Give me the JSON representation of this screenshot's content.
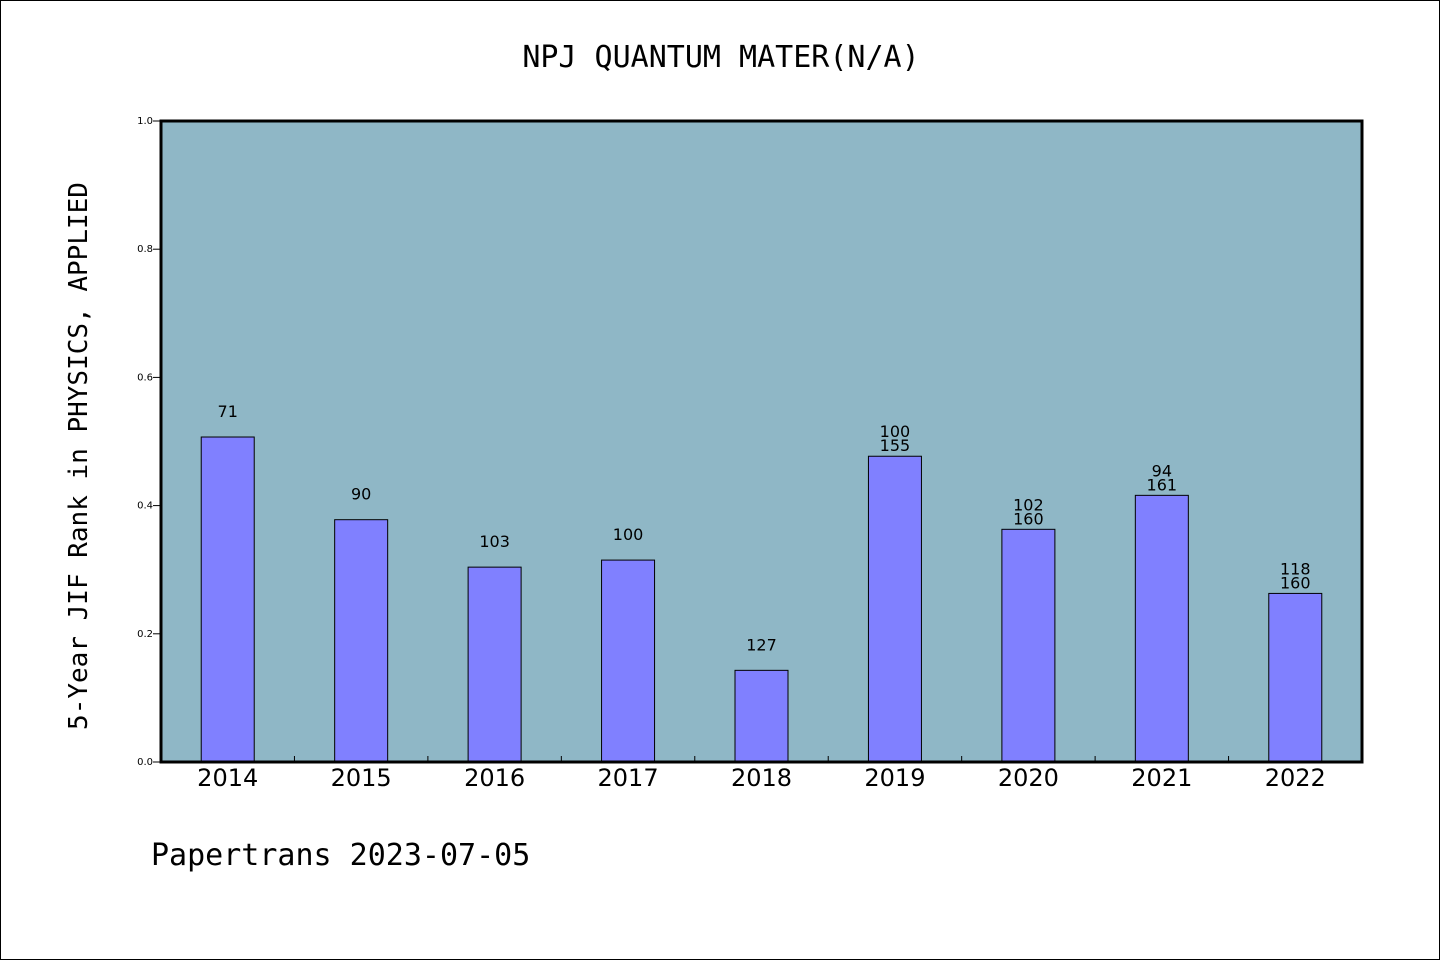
{
  "chart_data": {
    "type": "bar",
    "title": "NPJ QUANTUM MATER(N/A)",
    "xlabel": "",
    "ylabel": "5-Year JIF Rank in PHYSICS, APPLIED",
    "categories": [
      "2014",
      "2015",
      "2016",
      "2017",
      "2018",
      "2019",
      "2020",
      "2021",
      "2022"
    ],
    "values": [
      0.507,
      0.378,
      0.304,
      0.315,
      0.143,
      0.477,
      0.363,
      0.416,
      0.263
    ],
    "bar_labels": [
      [
        "71"
      ],
      [
        "90"
      ],
      [
        "103"
      ],
      [
        "100"
      ],
      [
        "127"
      ],
      [
        "100",
        "155"
      ],
      [
        "102",
        "160"
      ],
      [
        "94",
        "161"
      ],
      [
        "118",
        "160"
      ]
    ],
    "ylim": [
      0,
      1.0
    ],
    "yticks": [
      "0.0",
      "0.2",
      "0.4",
      "0.6",
      "0.8",
      "1.0"
    ],
    "grid": false,
    "colors": {
      "plot_background": "#8fb7c6",
      "bar_fill": "#8080ff",
      "bar_edge": "#000000"
    }
  },
  "footer": {
    "text": "Papertrans 2023-07-05"
  }
}
